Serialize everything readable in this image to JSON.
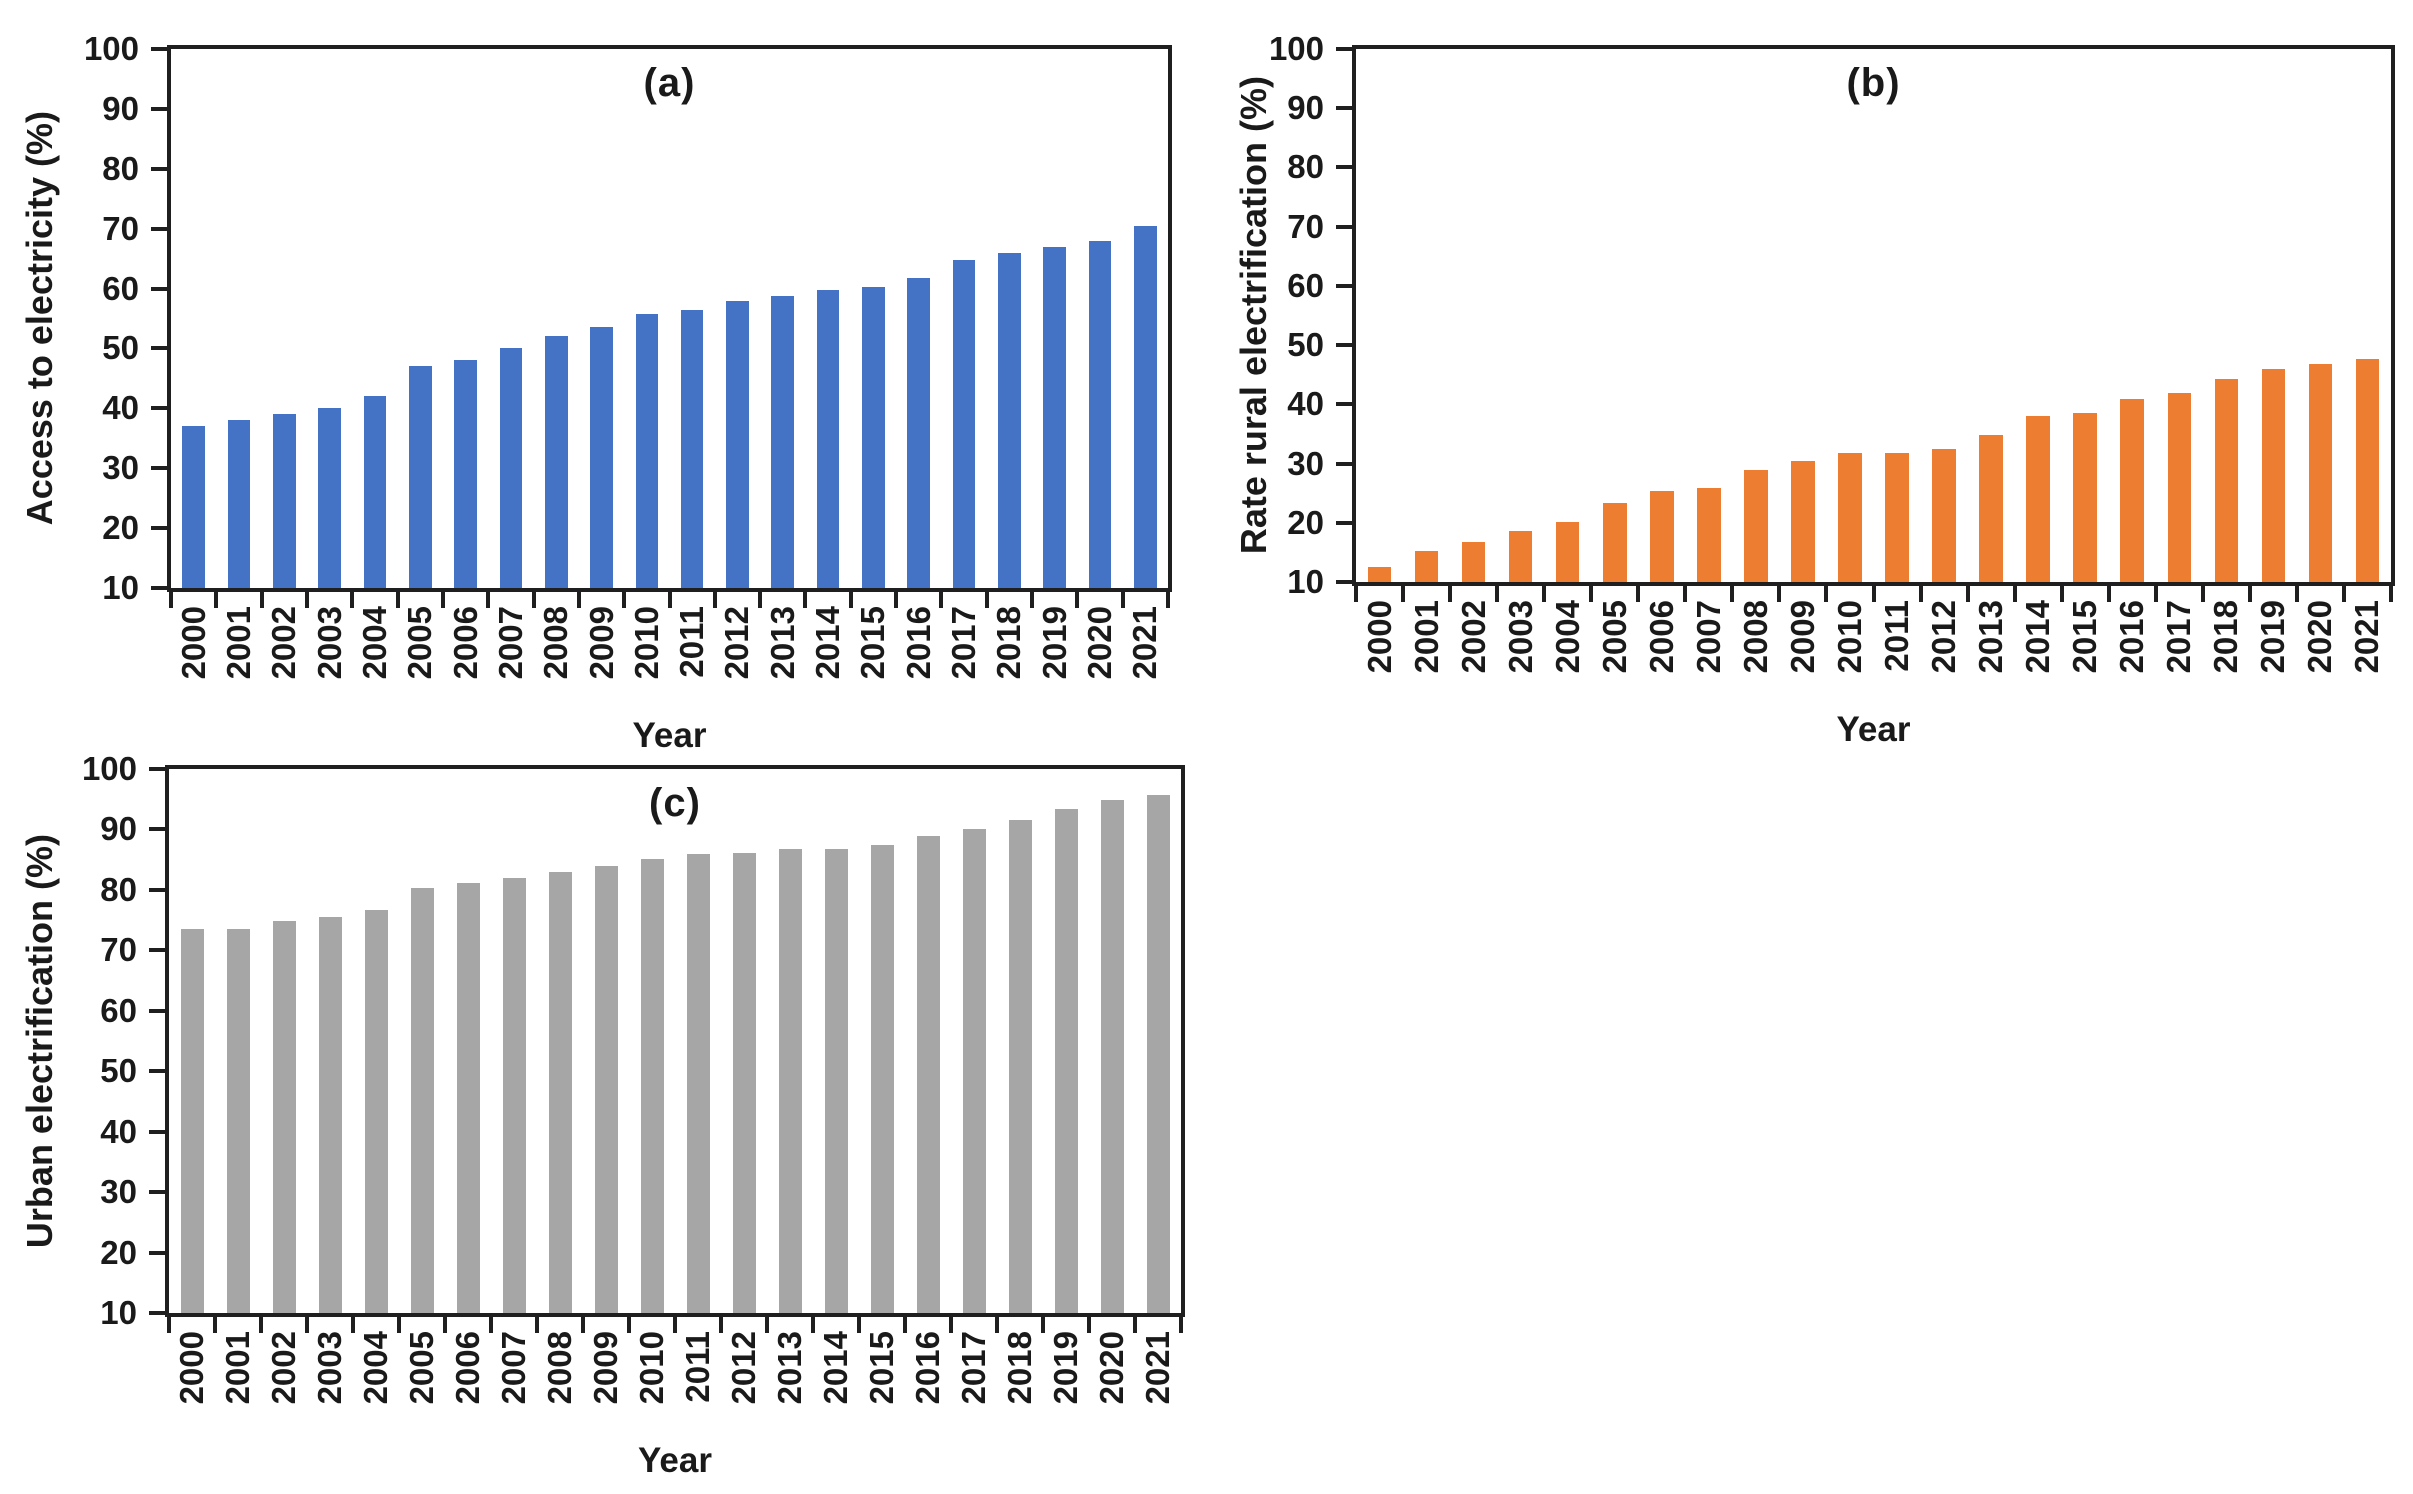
{
  "figure": {
    "background": "#ffffff",
    "axis_color": "#1f1f1f",
    "text_color": "#1a1a1a"
  },
  "chart_data": [
    {
      "id": "a",
      "type": "bar",
      "panel_label": "(a)",
      "ylabel": "Access to electricity (%)",
      "xlabel": "Year",
      "bar_color": "#4472C4",
      "ylim": [
        10,
        100
      ],
      "yticks": [
        100,
        90,
        80,
        70,
        60,
        50,
        40,
        30,
        20,
        10
      ],
      "grid": false,
      "legend": false,
      "categories": [
        "2000",
        "2001",
        "2002",
        "2003",
        "2004",
        "2005",
        "2006",
        "2007",
        "2008",
        "2009",
        "2010",
        "2011",
        "2012",
        "2013",
        "2014",
        "2015",
        "2016",
        "2017",
        "2018",
        "2019",
        "2020",
        "2021"
      ],
      "values": [
        37,
        38,
        39,
        40,
        42,
        47,
        48,
        50,
        52,
        53.5,
        55.8,
        56.4,
        57.9,
        58.8,
        59.8,
        60.3,
        61.8,
        64.8,
        65.9,
        66.9,
        68,
        70.4
      ]
    },
    {
      "id": "b",
      "type": "bar",
      "panel_label": "(b)",
      "ylabel": "Rate rural electrification (%)",
      "xlabel": "Year",
      "bar_color": "#ED7D31",
      "ylim": [
        10,
        100
      ],
      "yticks": [
        100,
        90,
        80,
        70,
        60,
        50,
        40,
        30,
        20,
        10
      ],
      "grid": false,
      "legend": false,
      "categories": [
        "2000",
        "2001",
        "2002",
        "2003",
        "2004",
        "2005",
        "2006",
        "2007",
        "2008",
        "2009",
        "2010",
        "2011",
        "2012",
        "2013",
        "2014",
        "2015",
        "2016",
        "2017",
        "2018",
        "2019",
        "2020",
        "2021"
      ],
      "values": [
        12.5,
        15.2,
        16.8,
        18.6,
        20.1,
        23.3,
        25.3,
        25.9,
        28.9,
        30.5,
        31.8,
        31.8,
        32.4,
        34.9,
        38,
        38.6,
        40.9,
        41.9,
        44.3,
        45.9,
        46.8,
        47.6
      ]
    },
    {
      "id": "c",
      "type": "bar",
      "panel_label": "(c)",
      "ylabel": "Urban electrification (%)",
      "xlabel": "Year",
      "bar_color": "#A6A6A6",
      "ylim": [
        10,
        100
      ],
      "yticks": [
        100,
        90,
        80,
        70,
        60,
        50,
        40,
        30,
        20,
        10
      ],
      "grid": false,
      "legend": false,
      "categories": [
        "2000",
        "2001",
        "2002",
        "2003",
        "2004",
        "2005",
        "2006",
        "2007",
        "2008",
        "2009",
        "2010",
        "2011",
        "2012",
        "2013",
        "2014",
        "2015",
        "2016",
        "2017",
        "2018",
        "2019",
        "2020",
        "2021"
      ],
      "values": [
        73.5,
        73.6,
        74.9,
        75.5,
        76.7,
        80.3,
        81.1,
        82,
        83,
        83.9,
        85.1,
        85.9,
        86.1,
        86.8,
        86.8,
        87.5,
        88.9,
        90,
        91.5,
        93.3,
        94.9,
        95.7
      ]
    }
  ]
}
